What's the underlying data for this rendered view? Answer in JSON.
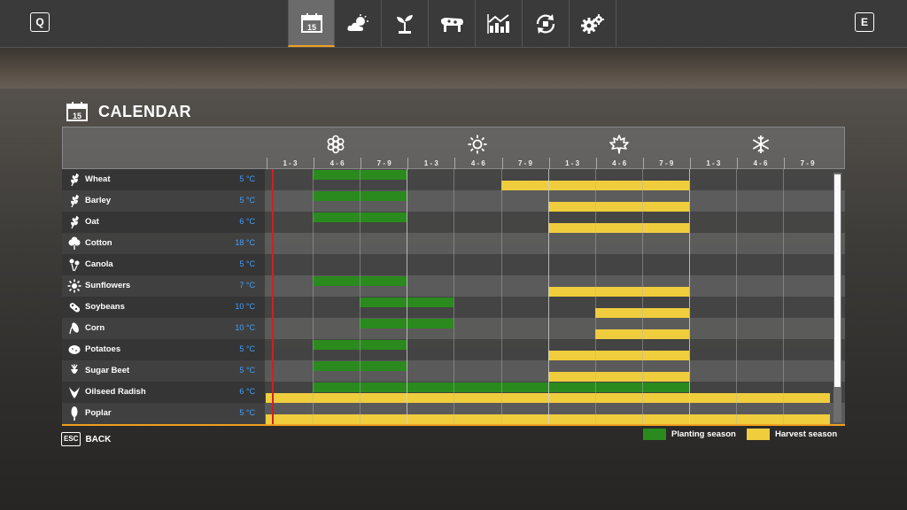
{
  "topbar": {
    "left_key": "Q",
    "right_key": "E",
    "tabs": [
      {
        "icon": "calendar-icon",
        "number": "15",
        "active": true
      },
      {
        "icon": "weather-icon"
      },
      {
        "icon": "crops-icon"
      },
      {
        "icon": "animals-icon"
      },
      {
        "icon": "prices-icon"
      },
      {
        "icon": "cycle-icon"
      },
      {
        "icon": "settings-icon"
      }
    ]
  },
  "page": {
    "title": "CALENDAR",
    "icon_number": "15"
  },
  "seasons": [
    {
      "name": "spring",
      "icon": "spring-flower-icon"
    },
    {
      "name": "summer",
      "icon": "summer-sun-icon"
    },
    {
      "name": "autumn",
      "icon": "autumn-leaf-icon"
    },
    {
      "name": "winter",
      "icon": "winter-snowflake-icon"
    }
  ],
  "months": [
    "1 - 3",
    "4 - 6",
    "7 - 9",
    "1 - 3",
    "4 - 6",
    "7 - 9",
    "1 - 3",
    "4 - 6",
    "7 - 9",
    "1 - 3",
    "4 - 6",
    "7 - 9"
  ],
  "crops": [
    {
      "name": "Wheat",
      "temp": "5 °C",
      "icon": "wheat-icon",
      "plant": [
        [
          1,
          3
        ]
      ],
      "harvest": [
        [
          5,
          9
        ]
      ]
    },
    {
      "name": "Barley",
      "temp": "5 °C",
      "icon": "barley-icon",
      "plant": [
        [
          1,
          3
        ]
      ],
      "harvest": [
        [
          6,
          9
        ]
      ]
    },
    {
      "name": "Oat",
      "temp": "6 °C",
      "icon": "oat-icon",
      "plant": [
        [
          1,
          3
        ]
      ],
      "harvest": [
        [
          6,
          9
        ]
      ]
    },
    {
      "name": "Cotton",
      "temp": "18 °C",
      "icon": "cotton-icon",
      "plant": [],
      "harvest": []
    },
    {
      "name": "Canola",
      "temp": "5 °C",
      "icon": "canola-icon",
      "plant": [],
      "harvest": []
    },
    {
      "name": "Sunflowers",
      "temp": "7 °C",
      "icon": "sunflowers-icon",
      "plant": [
        [
          1,
          3
        ]
      ],
      "harvest": [
        [
          6,
          9
        ]
      ]
    },
    {
      "name": "Soybeans",
      "temp": "10 °C",
      "icon": "soybeans-icon",
      "plant": [
        [
          2,
          4
        ]
      ],
      "harvest": [
        [
          7,
          9
        ]
      ]
    },
    {
      "name": "Corn",
      "temp": "10 °C",
      "icon": "corn-icon",
      "plant": [
        [
          2,
          4
        ]
      ],
      "harvest": [
        [
          7,
          9
        ]
      ]
    },
    {
      "name": "Potatoes",
      "temp": "5 °C",
      "icon": "potatoes-icon",
      "plant": [
        [
          1,
          3
        ]
      ],
      "harvest": [
        [
          6,
          9
        ]
      ]
    },
    {
      "name": "Sugar Beet",
      "temp": "5 °C",
      "icon": "sugar-beet-icon",
      "plant": [
        [
          1,
          3
        ]
      ],
      "harvest": [
        [
          6,
          9
        ]
      ]
    },
    {
      "name": "Oilseed Radish",
      "temp": "6 °C",
      "icon": "oilseed-radish-icon",
      "plant": [
        [
          1,
          9
        ]
      ],
      "harvest": [
        [
          0,
          12
        ]
      ]
    },
    {
      "name": "Poplar",
      "temp": "5 °C",
      "icon": "poplar-icon",
      "plant": [],
      "harvest": [
        [
          0,
          12
        ]
      ]
    }
  ],
  "footer": {
    "esc_key": "ESC",
    "back_label": "BACK"
  },
  "legend": {
    "planting": "Planting season",
    "harvest": "Harvest season"
  },
  "colors": {
    "planting": "#2a8a1e",
    "harvest": "#f0cd3c",
    "accent": "#f0a020",
    "temperature": "#3fa0ff",
    "today_marker": "#d02020"
  }
}
